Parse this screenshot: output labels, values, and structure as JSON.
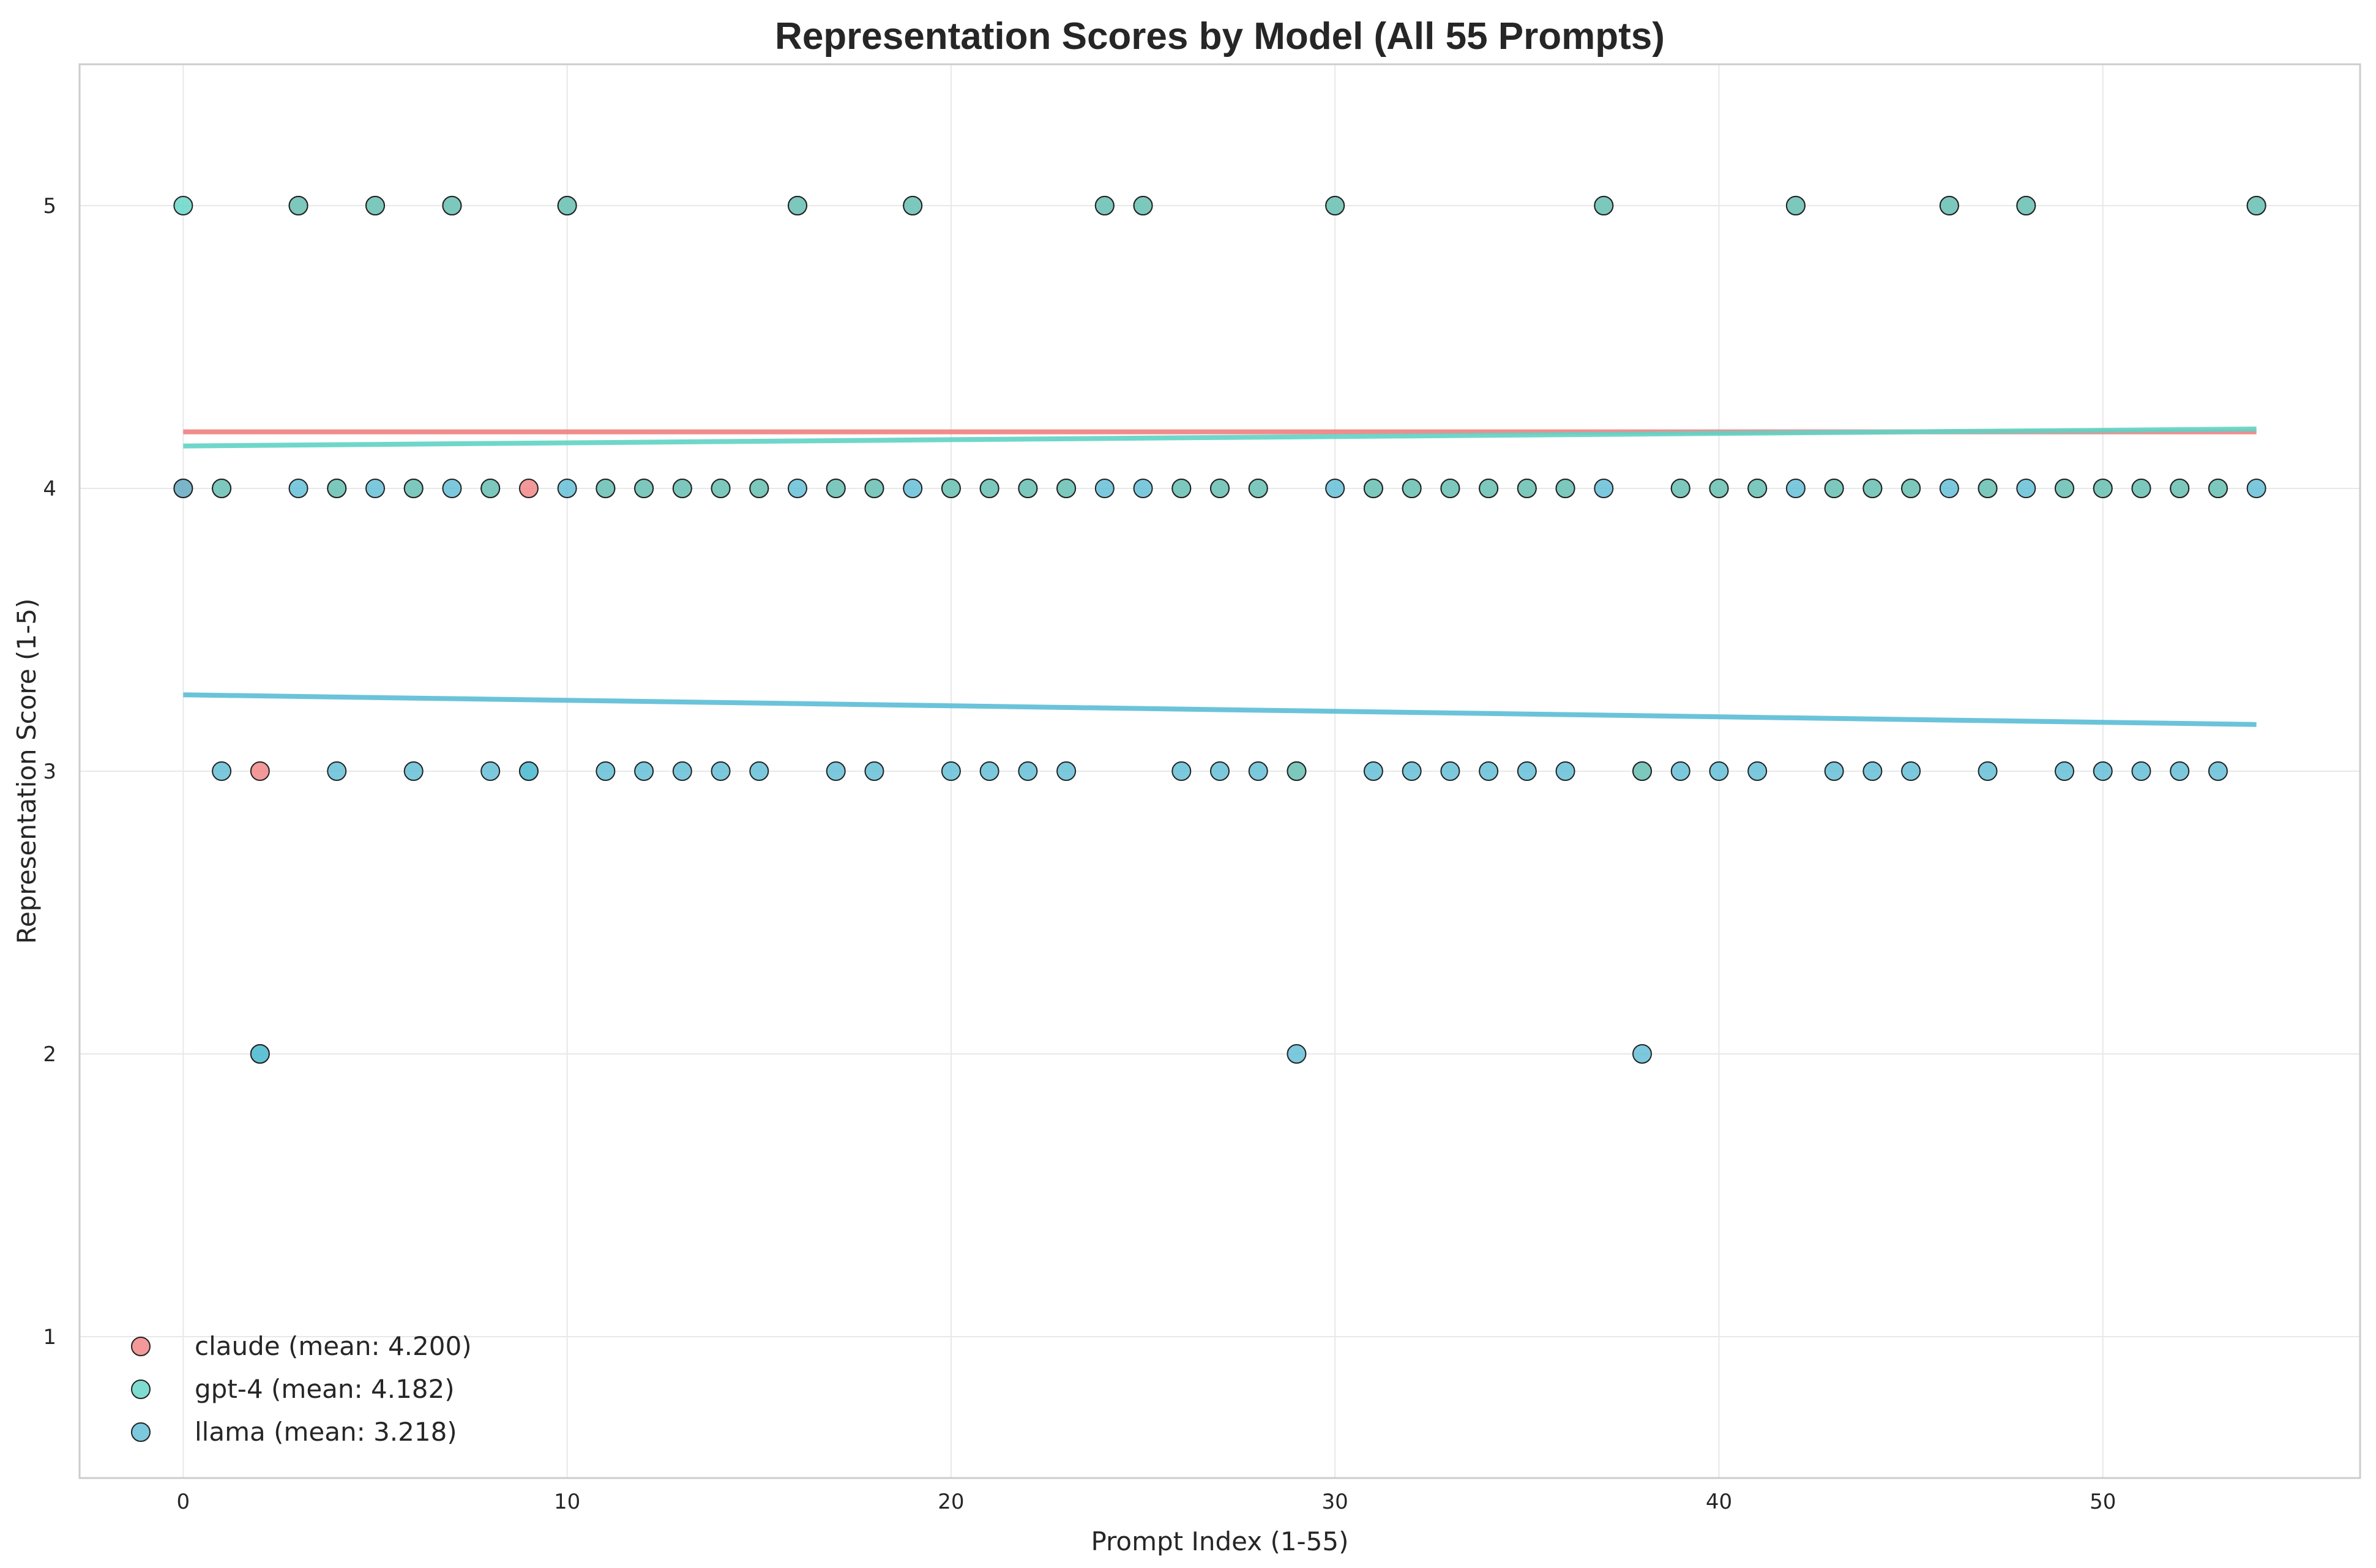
{
  "chart_data": {
    "type": "scatter",
    "title": "Representation Scores by Model (All 55 Prompts)",
    "xlabel": "Prompt Index (1-55)",
    "ylabel": "Representation Score (1-5)",
    "xlim": [
      -2.7,
      56.7
    ],
    "ylim": [
      0.5,
      5.5
    ],
    "xticks": [
      0,
      10,
      20,
      30,
      40,
      50
    ],
    "yticks": [
      1,
      2,
      3,
      4,
      5
    ],
    "grid": true,
    "legend_position": "lower-left",
    "series": [
      {
        "name": "claude (mean: 4.200)",
        "color": "#f08080",
        "x": [
          0,
          1,
          2,
          3,
          4,
          5,
          6,
          7,
          8,
          9,
          10,
          11,
          12,
          13,
          14,
          15,
          16,
          17,
          18,
          19,
          20,
          21,
          22,
          23,
          24,
          25,
          26,
          27,
          28,
          29,
          30,
          31,
          32,
          33,
          34,
          35,
          36,
          37,
          38,
          39,
          40,
          41,
          42,
          43,
          44,
          45,
          46,
          47,
          48,
          49,
          50,
          51,
          52,
          53,
          54
        ],
        "y": [
          4,
          4,
          3,
          5,
          4,
          5,
          4,
          5,
          4,
          4,
          5,
          4,
          4,
          4,
          4,
          4,
          5,
          4,
          4,
          5,
          4,
          4,
          4,
          4,
          5,
          5,
          4,
          4,
          4,
          3,
          5,
          4,
          4,
          4,
          4,
          4,
          4,
          5,
          3,
          4,
          4,
          4,
          5,
          4,
          4,
          4,
          5,
          4,
          5,
          4,
          4,
          4,
          4,
          4,
          5
        ],
        "trend": [
          4.2,
          4.2
        ]
      },
      {
        "name": "gpt-4 (mean: 4.182)",
        "color": "#5fd3c4",
        "x": [
          0,
          1,
          2,
          3,
          4,
          5,
          6,
          7,
          8,
          9,
          10,
          11,
          12,
          13,
          14,
          15,
          16,
          17,
          18,
          19,
          20,
          21,
          22,
          23,
          24,
          25,
          26,
          27,
          28,
          29,
          30,
          31,
          32,
          33,
          34,
          35,
          36,
          37,
          38,
          39,
          40,
          41,
          42,
          43,
          44,
          45,
          46,
          47,
          48,
          49,
          50,
          51,
          52,
          53,
          54
        ],
        "y": [
          5,
          4,
          2,
          5,
          4,
          5,
          4,
          5,
          4,
          3,
          5,
          4,
          4,
          4,
          4,
          4,
          5,
          4,
          4,
          5,
          4,
          4,
          4,
          4,
          5,
          5,
          4,
          4,
          4,
          3,
          5,
          4,
          4,
          4,
          4,
          4,
          4,
          5,
          3,
          4,
          4,
          4,
          5,
          4,
          4,
          4,
          5,
          4,
          5,
          4,
          4,
          4,
          4,
          4,
          5
        ],
        "trend": [
          4.15,
          4.21
        ]
      },
      {
        "name": "llama (mean: 3.218)",
        "color": "#5bbcd6",
        "x": [
          0,
          1,
          2,
          3,
          4,
          5,
          6,
          7,
          8,
          9,
          10,
          11,
          12,
          13,
          14,
          15,
          16,
          17,
          18,
          19,
          20,
          21,
          22,
          23,
          24,
          25,
          26,
          27,
          28,
          29,
          30,
          31,
          32,
          33,
          34,
          35,
          36,
          37,
          38,
          39,
          40,
          41,
          42,
          43,
          44,
          45,
          46,
          47,
          48,
          49,
          50,
          51,
          52,
          53,
          54
        ],
        "y": [
          4,
          3,
          2,
          4,
          3,
          4,
          3,
          4,
          3,
          3,
          4,
          3,
          3,
          3,
          3,
          3,
          4,
          3,
          3,
          4,
          3,
          3,
          3,
          3,
          4,
          4,
          3,
          3,
          3,
          2,
          4,
          3,
          3,
          3,
          3,
          3,
          3,
          4,
          2,
          3,
          3,
          3,
          4,
          3,
          3,
          3,
          4,
          3,
          4,
          3,
          3,
          3,
          3,
          3,
          4
        ],
        "trend": [
          3.27,
          3.165
        ]
      }
    ]
  }
}
